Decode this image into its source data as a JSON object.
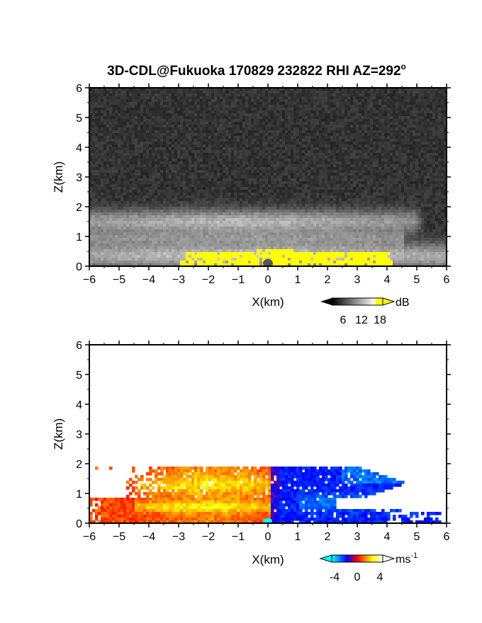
{
  "title": "3D-CDL@Fukuoka 170829 232822 RHI AZ=292",
  "title_suffix": "o",
  "chart_data": [
    {
      "type": "heatmap",
      "quantity": "signal intensity",
      "xlabel": "X(km)",
      "ylabel": "Z(km)",
      "xlim": [
        -6,
        6
      ],
      "ylim": [
        0,
        6
      ],
      "xticks": [
        "-6",
        "-5",
        "-4",
        "-3",
        "-2",
        "-1",
        "0",
        "1",
        "2",
        "3",
        "4",
        "5",
        "6"
      ],
      "yticks": [
        "0",
        "1",
        "2",
        "3",
        "4",
        "5",
        "6"
      ],
      "colorbar": {
        "unit": "dB",
        "ticks": [
          "6",
          "12",
          "18"
        ],
        "range": [
          0,
          20
        ],
        "colors": [
          "#000000",
          "#ffffff",
          "#ffff00"
        ]
      },
      "background_noise_color": "#2b2b2b",
      "features": [
        {
          "kind": "echo-layer",
          "x": [
            -6,
            5
          ],
          "z": [
            0.9,
            2.0
          ],
          "peak_dB": 12
        },
        {
          "kind": "echo-layer",
          "x": [
            -6,
            6
          ],
          "z": [
            0,
            0.9
          ],
          "peak_dB": 14
        },
        {
          "kind": "saturated-region",
          "x": [
            -3,
            4.2
          ],
          "z": [
            0,
            0.55
          ],
          "color": "#ffff00"
        }
      ]
    },
    {
      "type": "heatmap",
      "quantity": "Doppler velocity",
      "xlabel": "X(km)",
      "ylabel": "Z(km)",
      "xlim": [
        -6,
        6
      ],
      "ylim": [
        0,
        6
      ],
      "xticks": [
        "-6",
        "-5",
        "-4",
        "-3",
        "-2",
        "-1",
        "0",
        "1",
        "2",
        "3",
        "4",
        "5",
        "6"
      ],
      "yticks": [
        "0",
        "1",
        "2",
        "3",
        "4",
        "5",
        "6"
      ],
      "colorbar": {
        "unit": "ms",
        "unit_exponent": "-1",
        "ticks": [
          "-4",
          "0",
          "4"
        ],
        "range": [
          -6,
          6
        ],
        "colors": [
          "#00ffff",
          "#0000ff",
          "#ff0000",
          "#ffff00"
        ]
      },
      "features": [
        {
          "kind": "positive-velocity",
          "x": [
            -6,
            0.1
          ],
          "z": [
            0,
            1.95
          ],
          "color": "#ff9900"
        },
        {
          "kind": "negative-velocity",
          "x": [
            0.1,
            6
          ],
          "z": [
            0,
            1.95
          ],
          "color": "#1060ff"
        }
      ]
    }
  ]
}
